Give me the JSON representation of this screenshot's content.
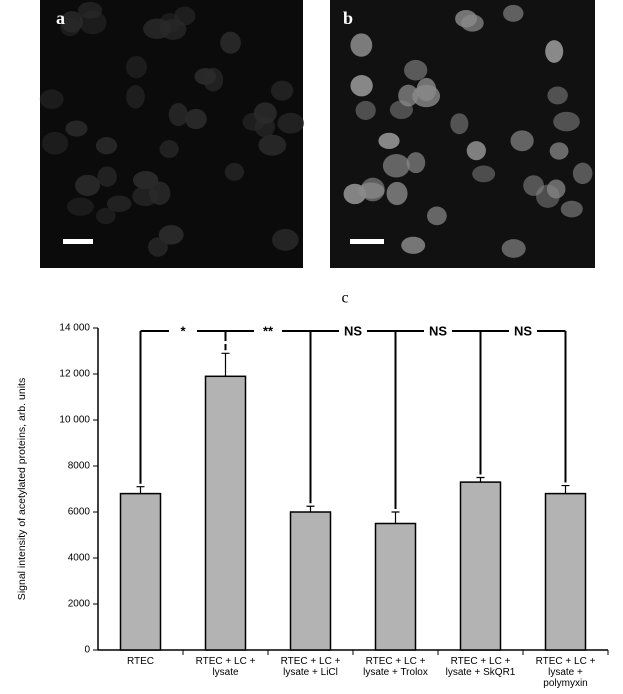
{
  "panels": [
    {
      "label": "a"
    },
    {
      "label": "b"
    }
  ],
  "chart_data": {
    "type": "bar",
    "panel_label": "c",
    "y_label": "Signal intensity of acetylated proteins, arb. units",
    "categories": [
      "RTEC",
      "RTEC + LC +\nlysate",
      "RTEC + LC +\nlysate + LiCl",
      "RTEC + LC +\nlysate + Trolox",
      "RTEC + LC +\nlysate + SkQR1",
      "RTEC + LC +\nlysate +\npolymyxin"
    ],
    "values": [
      6800,
      11900,
      6000,
      5500,
      7300,
      6800
    ],
    "errors": [
      300,
      1000,
      250,
      500,
      200,
      350
    ],
    "color": "#b3b3b3",
    "significance_labels": [
      "*",
      "**",
      "NS",
      "NS",
      "NS"
    ],
    "ylim": [
      0,
      14000
    ],
    "yticks": [
      0,
      2000,
      4000,
      6000,
      8000,
      {
        "value": 10000,
        "label": "10 000"
      },
      {
        "value": 12000,
        "label": "12 000"
      },
      {
        "value": 14000,
        "label": "14 000"
      }
    ]
  }
}
